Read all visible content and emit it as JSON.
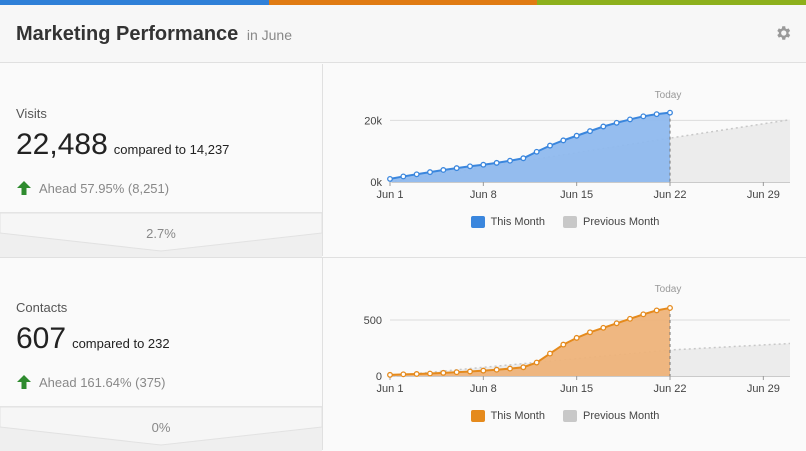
{
  "colors": {
    "bar_blue": "#2f80d8",
    "bar_orange": "#e07b13",
    "bar_green": "#8db01c",
    "visits_line": "#3a86dd",
    "visits_fill": "#8fb9ee",
    "contacts_line": "#e58a1c",
    "contacts_fill": "#eeb37a",
    "previous": "#c8c8c8",
    "ahead_arrow": "#2e8b2e"
  },
  "header": {
    "title": "Marketing Performance",
    "subtitle": "in June",
    "settings_icon": "gear-icon"
  },
  "visits": {
    "label": "Visits",
    "value": "22,488",
    "compare": "compared to 14,237",
    "ahead": "Ahead 57.95% (8,251)",
    "change": "2.7%"
  },
  "contacts": {
    "label": "Contacts",
    "value": "607",
    "compare": "compared to 232",
    "ahead": "Ahead 161.64% (375)",
    "change": "0%"
  },
  "legend": {
    "this_month": "This Month",
    "previous_month": "Previous Month"
  },
  "chart_data": [
    {
      "type": "area",
      "title": "",
      "xlabel": "",
      "ylabel": "",
      "x_ticks": [
        "Jun 1",
        "Jun 8",
        "Jun 15",
        "Jun 22",
        "Jun 29"
      ],
      "y_ticks": [
        "0k",
        "20k"
      ],
      "ylim": [
        0,
        24000
      ],
      "xlim": [
        1,
        31
      ],
      "annotation": "Today",
      "today_day": 22,
      "series": [
        {
          "name": "This Month",
          "days": [
            1,
            2,
            3,
            4,
            5,
            6,
            7,
            8,
            9,
            10,
            11,
            12,
            13,
            14,
            15,
            16,
            17,
            18,
            19,
            20,
            21,
            22
          ],
          "values": [
            1000,
            1800,
            2500,
            3200,
            3900,
            4500,
            5100,
            5600,
            6200,
            6900,
            7700,
            9800,
            11800,
            13500,
            15000,
            16500,
            18000,
            19200,
            20300,
            21300,
            22000,
            22488
          ]
        },
        {
          "name": "Previous Month",
          "days": [
            1,
            22,
            31
          ],
          "values": [
            0,
            14237,
            20200
          ]
        }
      ]
    },
    {
      "type": "area",
      "title": "",
      "xlabel": "",
      "ylabel": "",
      "x_ticks": [
        "Jun 1",
        "Jun 8",
        "Jun 15",
        "Jun 22",
        "Jun 29"
      ],
      "y_ticks": [
        "0",
        "500"
      ],
      "ylim": [
        0,
        660
      ],
      "xlim": [
        1,
        31
      ],
      "annotation": "Today",
      "today_day": 22,
      "series": [
        {
          "name": "This Month",
          "days": [
            1,
            2,
            3,
            4,
            5,
            6,
            7,
            8,
            9,
            10,
            11,
            12,
            13,
            14,
            15,
            16,
            17,
            18,
            19,
            20,
            21,
            22
          ],
          "values": [
            10,
            15,
            18,
            22,
            28,
            34,
            40,
            48,
            56,
            66,
            78,
            120,
            200,
            280,
            340,
            390,
            430,
            470,
            510,
            550,
            585,
            607
          ]
        },
        {
          "name": "Previous Month",
          "days": [
            1,
            22,
            31
          ],
          "values": [
            0,
            232,
            290
          ]
        }
      ]
    }
  ]
}
